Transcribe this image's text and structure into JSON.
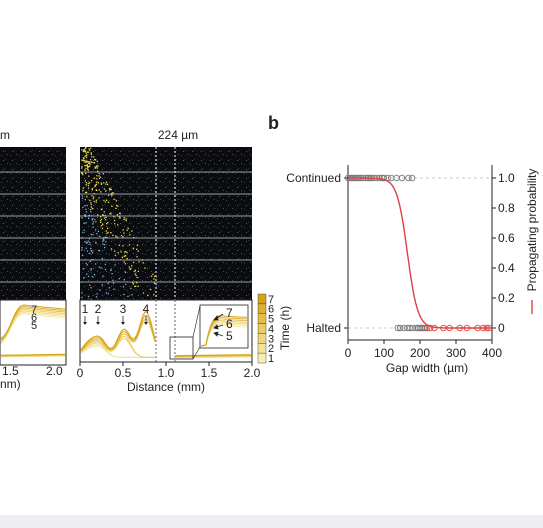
{
  "panel_b_label": "b",
  "left_panel": {
    "title_fragment": "m",
    "x_tick_labels": [
      "1.5",
      "2.0"
    ],
    "x_axis_fragment": "nm)",
    "inset_labels": [
      "7",
      "6",
      "5"
    ]
  },
  "middle_panel": {
    "title": "224 µm",
    "peak_labels": [
      "1",
      "2",
      "3",
      "4"
    ],
    "inset_labels": [
      "7",
      "6",
      "5"
    ],
    "x_ticks": [
      "0",
      "0.5",
      "1.0",
      "1.5",
      "2.0"
    ],
    "x_label": "Distance (mm)",
    "colorbar_ticks": [
      "7",
      "6",
      "5",
      "4",
      "3",
      "2",
      "1"
    ],
    "colorbar_label": "Time (h)"
  },
  "chart_data": {
    "type": "scatter",
    "xlabel": "Gap width (µm)",
    "ylabel": "",
    "y2label": "Propagating probability",
    "xlim": [
      0,
      400
    ],
    "x_ticks": [
      "0",
      "100",
      "200",
      "300",
      "400"
    ],
    "y_categories": [
      "Continued",
      "Halted"
    ],
    "y2_ticks": [
      "0",
      "0.2",
      "0.4",
      "0.6",
      "0.8",
      "1.0"
    ],
    "y2lim": [
      0,
      1.1
    ],
    "fit_curve": {
      "type": "logistic",
      "x0": 165,
      "slope": 0.07
    },
    "series": [
      {
        "outcome": "Continued",
        "points": [
          0,
          5,
          10,
          15,
          20,
          25,
          30,
          35,
          42,
          50,
          55,
          60,
          65,
          72,
          80,
          88,
          95,
          100,
          110,
          120,
          135,
          150,
          168,
          178
        ]
      },
      {
        "outcome": "Halted",
        "points": [
          138,
          145,
          155,
          165,
          172,
          180,
          190,
          195,
          200,
          205,
          210,
          215,
          220,
          228,
          240,
          265,
          282,
          310,
          330,
          360,
          375,
          385,
          392
        ]
      }
    ],
    "colors": {
      "fit": "#e04040",
      "points": "#777777",
      "guide": "#bbbbbb"
    }
  }
}
